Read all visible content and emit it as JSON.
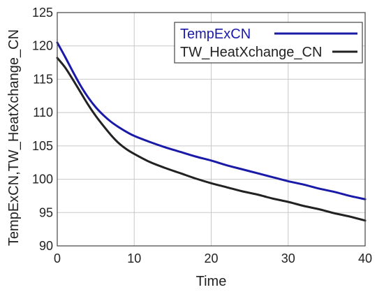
{
  "chart_data": {
    "type": "line",
    "title": "",
    "xlabel": "Time",
    "ylabel": "TempExCN,TW_HeatXchange_CN",
    "xlim": [
      0,
      40
    ],
    "ylim": [
      90,
      125
    ],
    "x_ticks": [
      "0",
      "10",
      "20",
      "30",
      "40"
    ],
    "y_ticks": [
      "90",
      "95",
      "100",
      "105",
      "110",
      "115",
      "120",
      "125"
    ],
    "grid": true,
    "legend_position": "top-right",
    "series": [
      {
        "name": "TempExCN",
        "color": "#1a1aa8",
        "x": [
          0,
          1,
          2,
          3,
          4,
          5,
          6,
          7,
          8,
          9,
          10,
          12,
          14,
          16,
          18,
          20,
          22,
          24,
          26,
          28,
          30,
          32,
          34,
          36,
          38,
          40
        ],
        "y": [
          120.5,
          118.4,
          116.2,
          114.1,
          112.3,
          110.8,
          109.6,
          108.6,
          107.8,
          107.1,
          106.5,
          105.6,
          104.8,
          104.1,
          103.4,
          102.8,
          102.1,
          101.5,
          100.9,
          100.3,
          99.7,
          99.2,
          98.6,
          98.1,
          97.5,
          97.0
        ]
      },
      {
        "name": "TW_HeatXchange_CN",
        "color": "#222222",
        "x": [
          0,
          1,
          2,
          3,
          4,
          5,
          6,
          7,
          8,
          9,
          10,
          12,
          14,
          16,
          18,
          20,
          22,
          24,
          26,
          28,
          30,
          32,
          34,
          36,
          38,
          40
        ],
        "y": [
          118.2,
          116.8,
          115.0,
          113.1,
          111.2,
          109.5,
          108.0,
          106.6,
          105.4,
          104.5,
          103.8,
          102.6,
          101.7,
          100.9,
          100.1,
          99.4,
          98.8,
          98.2,
          97.7,
          97.1,
          96.6,
          96.0,
          95.5,
          94.9,
          94.4,
          93.8
        ]
      }
    ]
  }
}
